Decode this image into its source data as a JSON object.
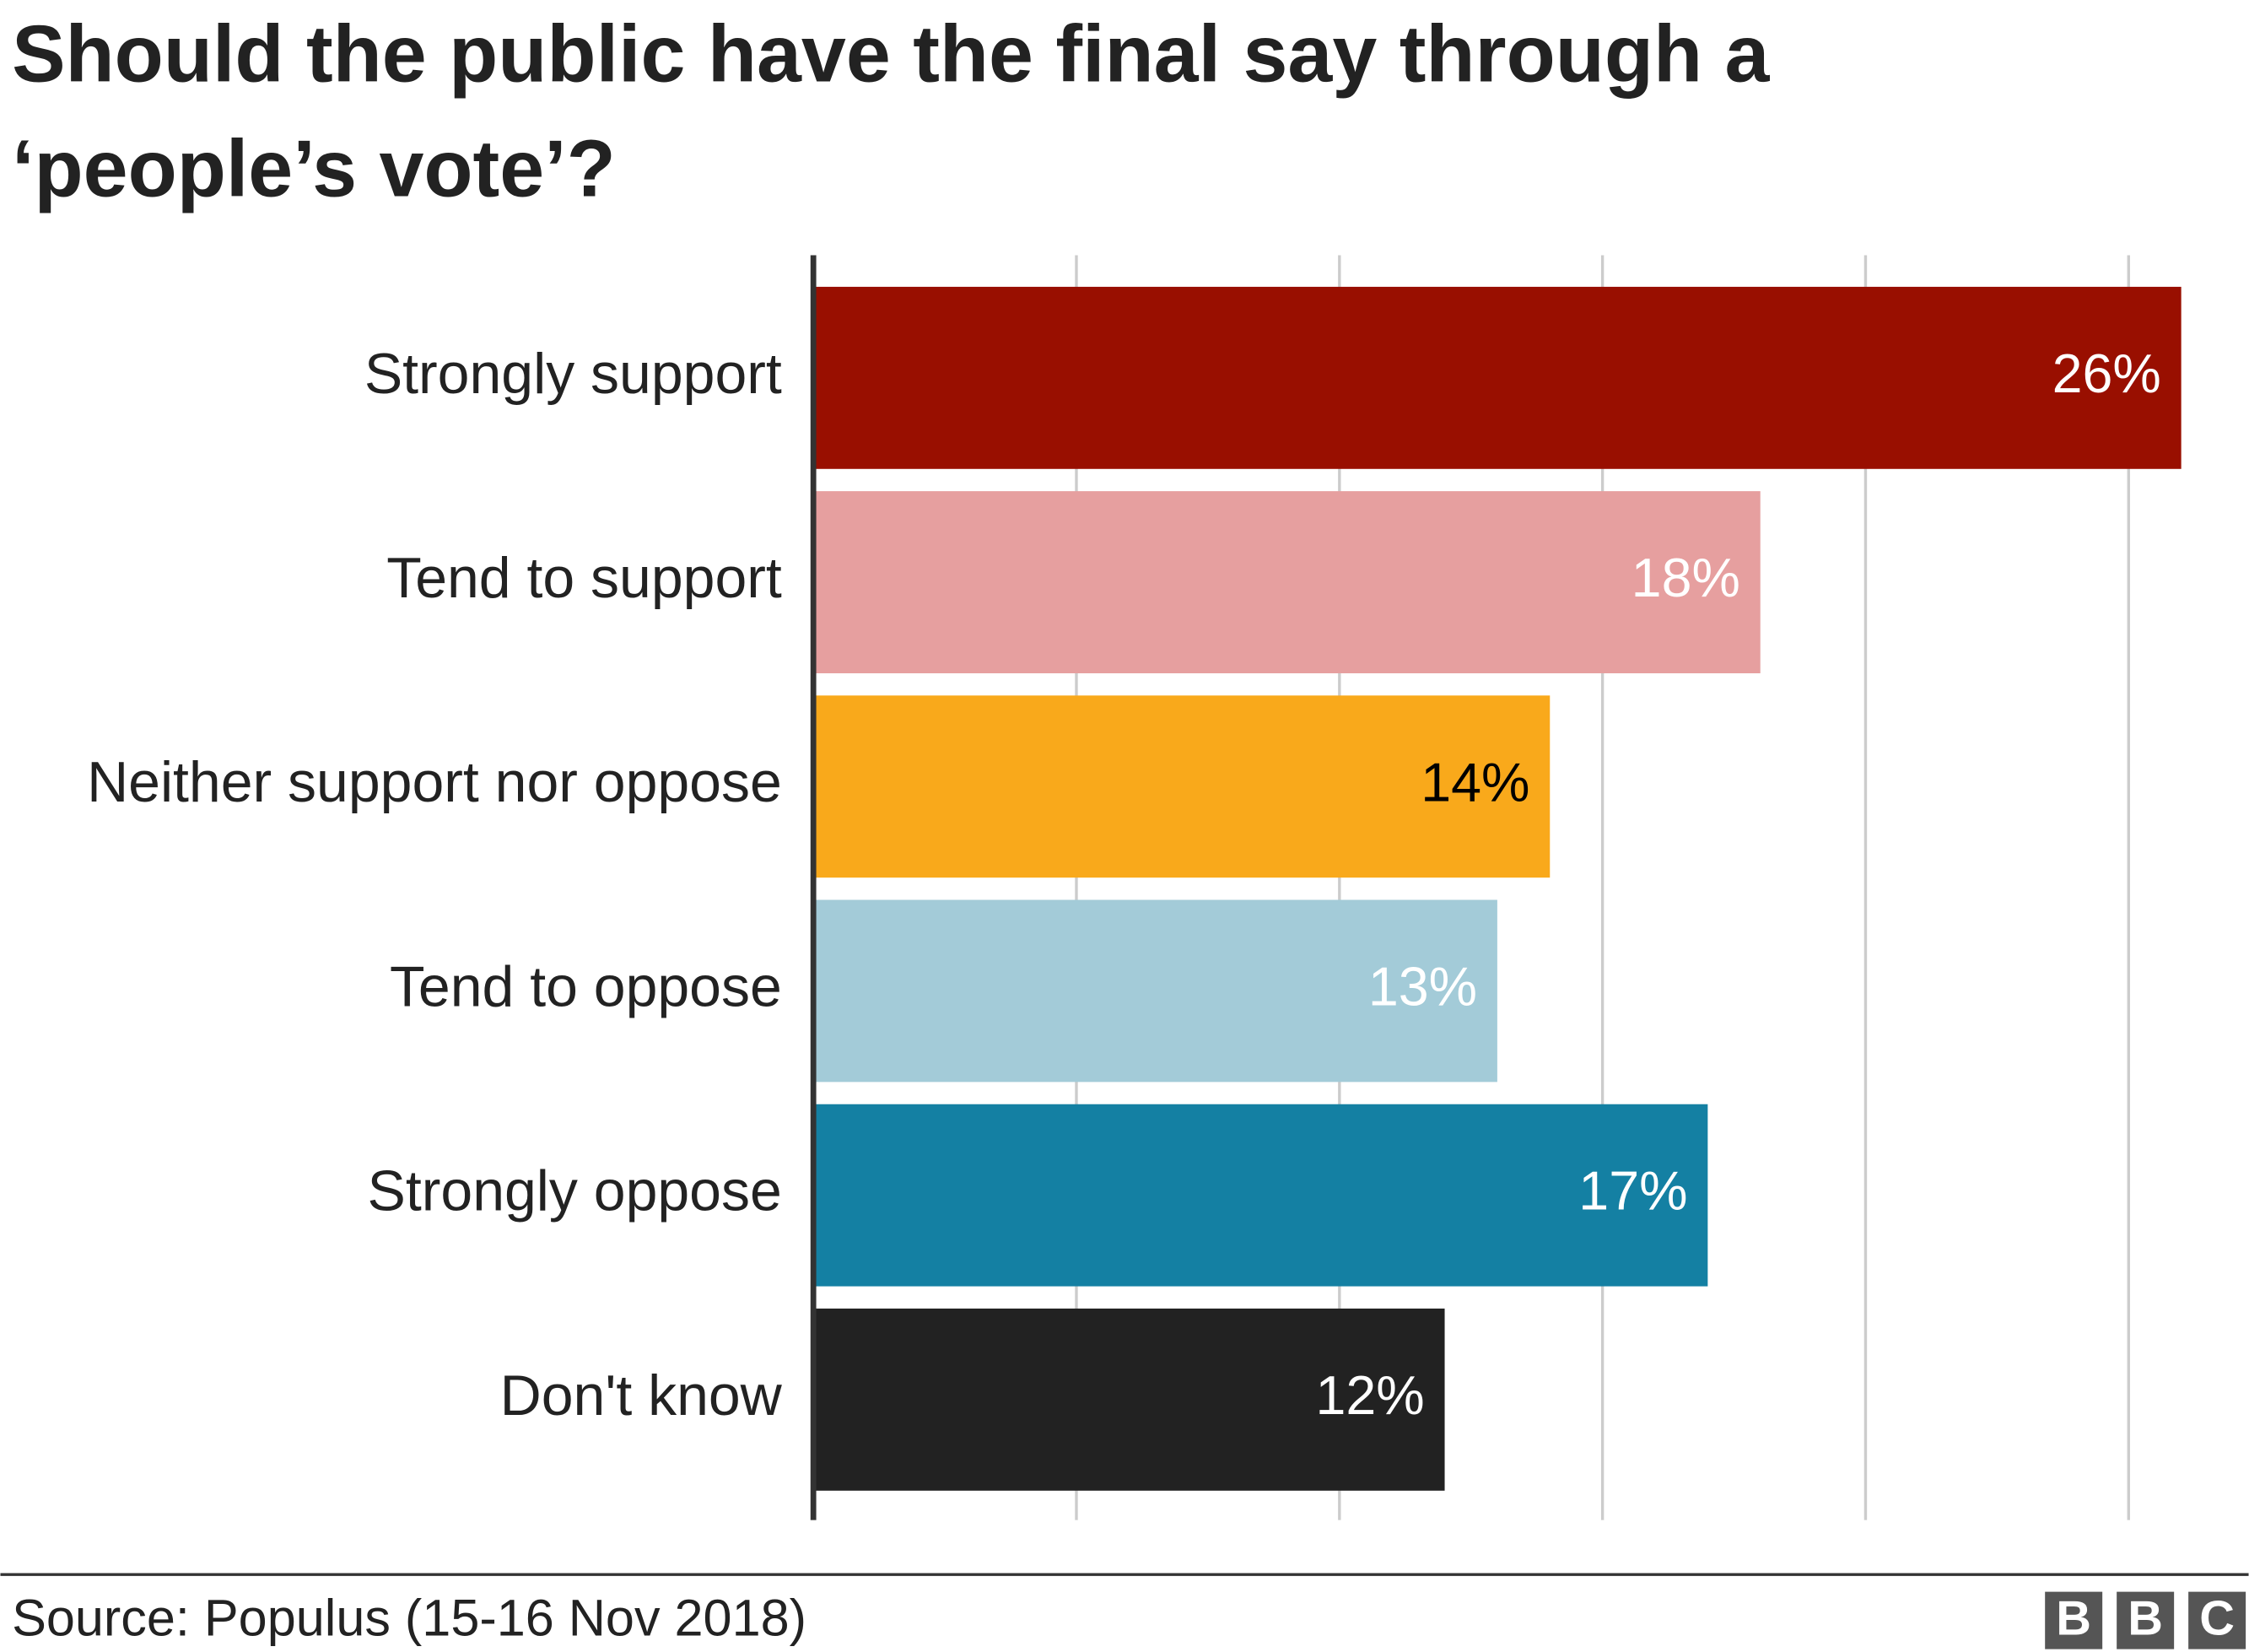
{
  "chart_data": {
    "type": "bar",
    "orientation": "horizontal",
    "title": [
      "Should the public have the final say through a",
      "‘people’s vote’?"
    ],
    "categories": [
      "Strongly support",
      "Tend to support",
      "Neither support nor oppose",
      "Tend to oppose",
      "Strongly oppose",
      "Don't know"
    ],
    "values": [
      26,
      18,
      14,
      13,
      17,
      12
    ],
    "value_labels": [
      "26%",
      "18%",
      "14%",
      "13%",
      "17%",
      "12%"
    ],
    "colors": [
      "#990f00",
      "#e69f9f",
      "#f9a91b",
      "#a3cbd8",
      "#1480a3",
      "#222222"
    ],
    "value_label_colors": [
      "#ffffff",
      "#ffffff",
      "#000000",
      "#ffffff",
      "#ffffff",
      "#ffffff"
    ],
    "xlim": [
      0,
      26
    ],
    "xticks": [
      0,
      5,
      10,
      15,
      20,
      25
    ],
    "grid": true,
    "source": "Source: Populus (15-16 Nov 2018)",
    "logo": [
      "B",
      "B",
      "C"
    ]
  }
}
